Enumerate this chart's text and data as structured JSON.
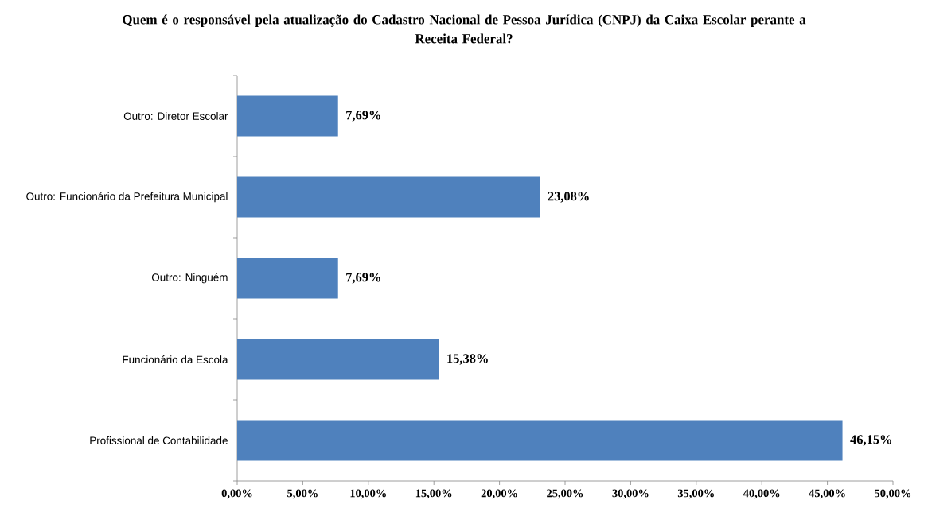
{
  "chart_data": {
    "type": "bar",
    "orientation": "horizontal",
    "title": "Quem é o responsável pela atualização do Cadastro Nacional de Pessoa Jurídica (CNPJ) da Caixa Escolar perante a Receita Federal?",
    "categories": [
      "Outro: Diretor Escolar",
      "Outro: Funcionário da Prefeitura Municipal",
      "Outro: Ninguém",
      "Funcionário da Escola",
      "Profissional de Contabilidade"
    ],
    "values": [
      7.69,
      23.08,
      7.69,
      15.38,
      46.15
    ],
    "value_labels": [
      "7,69%",
      "23,08%",
      "7,69%",
      "15,38%",
      "46,15%"
    ],
    "color": "#4f81bd",
    "xlim": [
      0,
      50
    ],
    "xticks": [
      {
        "value": 0,
        "label": "0,00%"
      },
      {
        "value": 5,
        "label": "5,00%"
      },
      {
        "value": 10,
        "label": "10,00%"
      },
      {
        "value": 15,
        "label": "15,00%"
      },
      {
        "value": 20,
        "label": "20,00%"
      },
      {
        "value": 25,
        "label": "25,00%"
      },
      {
        "value": 30,
        "label": "30,00%"
      },
      {
        "value": 35,
        "label": "35,00%"
      },
      {
        "value": 40,
        "label": "40,00%"
      },
      {
        "value": 45,
        "label": "45,00%"
      },
      {
        "value": 50,
        "label": "50,00%"
      }
    ]
  }
}
